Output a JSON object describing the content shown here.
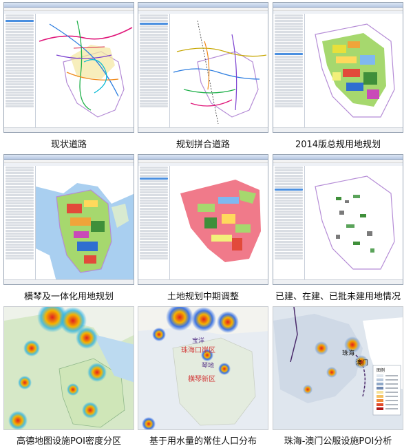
{
  "panels": [
    {
      "caption": "现状道路"
    },
    {
      "caption": "规划拼合道路"
    },
    {
      "caption": "2014版总规用地规划"
    },
    {
      "caption": "横琴及一体化用地规划"
    },
    {
      "caption": "土地规划中期调整"
    },
    {
      "caption": "已建、在建、已批未建用地情况"
    },
    {
      "caption": "高德地图设施POI密度分区"
    },
    {
      "caption": "基于用水量的常住人口分布"
    },
    {
      "caption": "珠海-澳门公服设施POI分析"
    }
  ],
  "map_labels": {
    "p8_district1": "珠海口岸区",
    "p8_district2": "横琴新区",
    "p8_place1": "宝洋",
    "p8_place2": "琴地",
    "p9_city1": "珠海",
    "p9_city2": "澳门",
    "p9_legend_title": "图例"
  },
  "colors": {
    "gis_border": "#9aa6b5",
    "boundary": "#b58cd6",
    "water": "#a9cff0"
  }
}
